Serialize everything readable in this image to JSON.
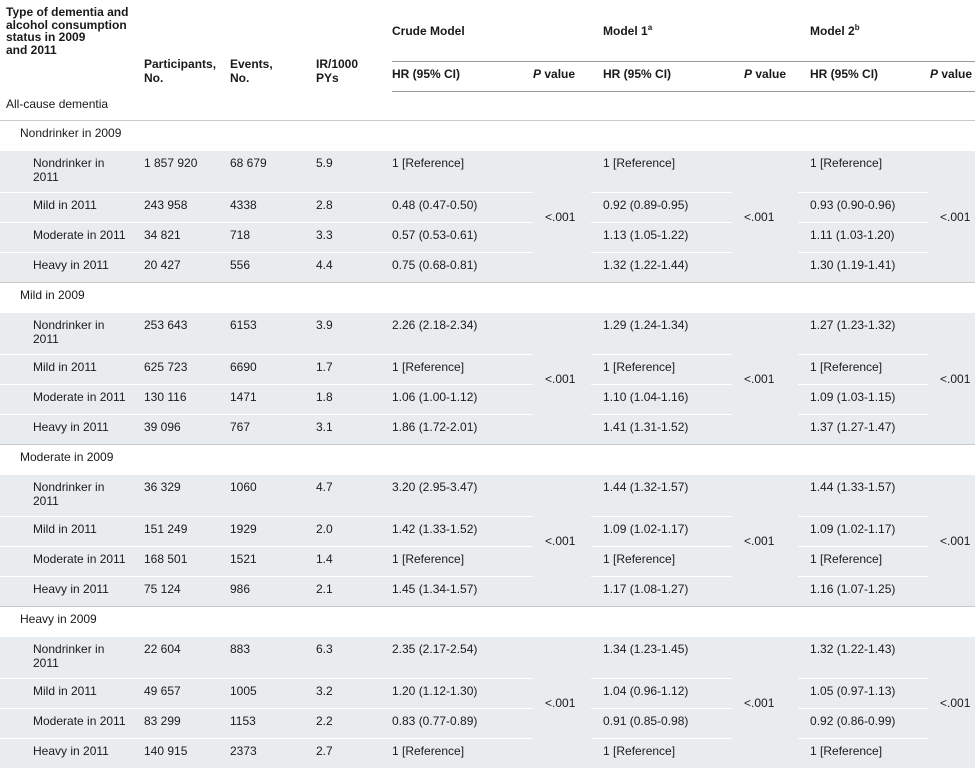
{
  "header": {
    "type_col": [
      "Type of dementia and",
      "alcohol consumption",
      "status in 2009",
      "and 2011"
    ],
    "participants": [
      "Participants,",
      "No."
    ],
    "events": [
      "Events,",
      "No."
    ],
    "ir": [
      "IR/1000",
      "PYs"
    ],
    "crude_model": "Crude Model",
    "model1": "Model 1",
    "model1_sup": "a",
    "model2": "Model 2",
    "model2_sup": "b",
    "hr_label": "HR (95% CI)",
    "p_label_italic": "P",
    "p_label_rest": " value"
  },
  "section": "All-cause dementia",
  "groups": [
    {
      "label": "Nondrinker in 2009",
      "p_crude": "<.001",
      "p_m1": "<.001",
      "p_m2": "<.001",
      "rows": [
        {
          "label": [
            "Nondrinker in",
            "2011"
          ],
          "participants": "1 857 920",
          "events": "68 679",
          "ir": "5.9",
          "crude": "1 [Reference]",
          "m1": "1 [Reference]",
          "m2": "1 [Reference]"
        },
        {
          "label": [
            "Mild in 2011"
          ],
          "participants": "243 958",
          "events": "4338",
          "ir": "2.8",
          "crude": "0.48 (0.47-0.50)",
          "m1": "0.92 (0.89-0.95)",
          "m2": "0.93 (0.90-0.96)"
        },
        {
          "label": [
            "Moderate in 2011"
          ],
          "participants": "34 821",
          "events": "718",
          "ir": "3.3",
          "crude": "0.57 (0.53-0.61)",
          "m1": "1.13 (1.05-1.22)",
          "m2": "1.11 (1.03-1.20)"
        },
        {
          "label": [
            "Heavy in 2011"
          ],
          "participants": "20 427",
          "events": "556",
          "ir": "4.4",
          "crude": "0.75 (0.68-0.81)",
          "m1": "1.32 (1.22-1.44)",
          "m2": "1.30 (1.19-1.41)"
        }
      ]
    },
    {
      "label": "Mild in 2009",
      "p_crude": "<.001",
      "p_m1": "<.001",
      "p_m2": "<.001",
      "rows": [
        {
          "label": [
            "Nondrinker in",
            "2011"
          ],
          "participants": "253 643",
          "events": "6153",
          "ir": "3.9",
          "crude": "2.26 (2.18-2.34)",
          "m1": "1.29 (1.24-1.34)",
          "m2": "1.27 (1.23-1.32)"
        },
        {
          "label": [
            "Mild in 2011"
          ],
          "participants": "625 723",
          "events": "6690",
          "ir": "1.7",
          "crude": "1 [Reference]",
          "m1": "1 [Reference]",
          "m2": "1 [Reference]"
        },
        {
          "label": [
            "Moderate in 2011"
          ],
          "participants": "130 116",
          "events": "1471",
          "ir": "1.8",
          "crude": "1.06 (1.00-1.12)",
          "m1": "1.10 (1.04-1.16)",
          "m2": "1.09 (1.03-1.15)"
        },
        {
          "label": [
            "Heavy in 2011"
          ],
          "participants": "39 096",
          "events": "767",
          "ir": "3.1",
          "crude": "1.86 (1.72-2.01)",
          "m1": "1.41 (1.31-1.52)",
          "m2": "1.37 (1.27-1.47)"
        }
      ]
    },
    {
      "label": "Moderate in 2009",
      "p_crude": "<.001",
      "p_m1": "<.001",
      "p_m2": "<.001",
      "rows": [
        {
          "label": [
            "Nondrinker in",
            "2011"
          ],
          "participants": "36 329",
          "events": "1060",
          "ir": "4.7",
          "crude": "3.20 (2.95-3.47)",
          "m1": "1.44 (1.32-1.57)",
          "m2": "1.44 (1.33-1.57)"
        },
        {
          "label": [
            "Mild in 2011"
          ],
          "participants": "151 249",
          "events": "1929",
          "ir": "2.0",
          "crude": "1.42 (1.33-1.52)",
          "m1": "1.09 (1.02-1.17)",
          "m2": "1.09 (1.02-1.17)"
        },
        {
          "label": [
            "Moderate in 2011"
          ],
          "participants": "168 501",
          "events": "1521",
          "ir": "1.4",
          "crude": "1 [Reference]",
          "m1": "1 [Reference]",
          "m2": "1 [Reference]"
        },
        {
          "label": [
            "Heavy in 2011"
          ],
          "participants": "75 124",
          "events": "986",
          "ir": "2.1",
          "crude": "1.45 (1.34-1.57)",
          "m1": "1.17 (1.08-1.27)",
          "m2": "1.16 (1.07-1.25)"
        }
      ]
    },
    {
      "label": "Heavy in 2009",
      "p_crude": "<.001",
      "p_m1": "<.001",
      "p_m2": "<.001",
      "rows": [
        {
          "label": [
            "Nondrinker in",
            "2011"
          ],
          "participants": "22 604",
          "events": "883",
          "ir": "6.3",
          "crude": "2.35 (2.17-2.54)",
          "m1": "1.34 (1.23-1.45)",
          "m2": "1.32 (1.22-1.43)"
        },
        {
          "label": [
            "Mild in 2011"
          ],
          "participants": "49 657",
          "events": "1005",
          "ir": "3.2",
          "crude": "1.20 (1.12-1.30)",
          "m1": "1.04 (0.96-1.12)",
          "m2": "1.05 (0.97-1.13)"
        },
        {
          "label": [
            "Moderate in 2011"
          ],
          "participants": "83 299",
          "events": "1153",
          "ir": "2.2",
          "crude": "0.83 (0.77-0.89)",
          "m1": "0.91 (0.85-0.98)",
          "m2": "0.92 (0.86-0.99)"
        },
        {
          "label": [
            "Heavy in 2011"
          ],
          "participants": "140 915",
          "events": "2373",
          "ir": "2.7",
          "crude": "1 [Reference]",
          "m1": "1 [Reference]",
          "m2": "1 [Reference]"
        }
      ]
    }
  ]
}
